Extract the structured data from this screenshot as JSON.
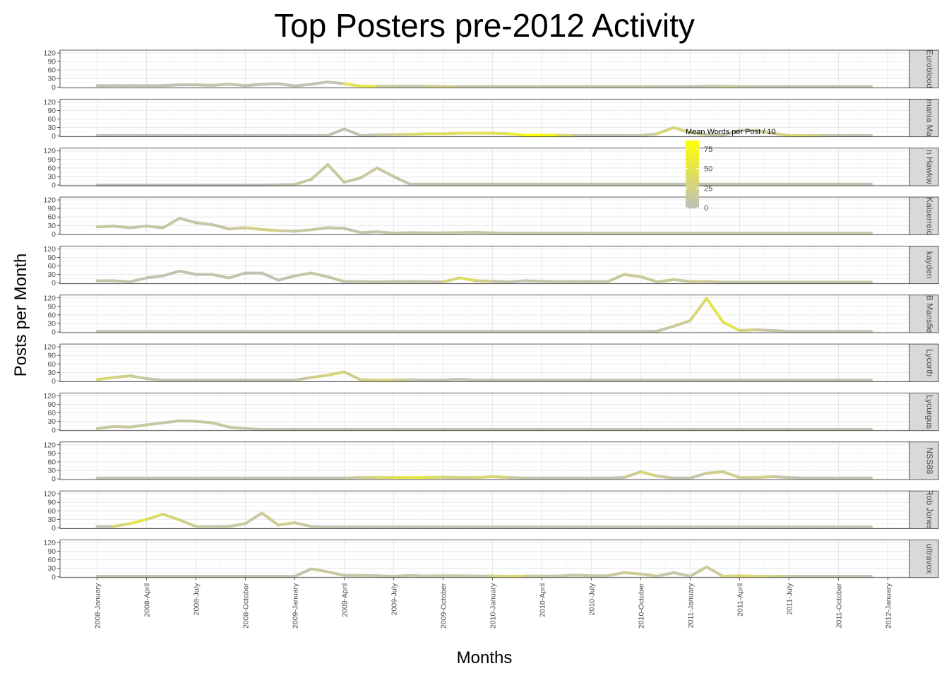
{
  "chart_data": {
    "type": "line",
    "title": "Top Posters pre-2012 Activity",
    "xlabel": "Months",
    "ylabel": "Posts per Month",
    "y_ticks": [
      0,
      30,
      60,
      90,
      120
    ],
    "ylim": [
      0,
      120
    ],
    "x_tick_labels": [
      "2008-January",
      "2008-April",
      "2008-July",
      "2008-October",
      "2009-January",
      "2009-April",
      "2009-July",
      "2009-October",
      "2010-January",
      "2010-April",
      "2010-July",
      "2010-October",
      "2011-January",
      "2011-April",
      "2011-July",
      "2011-October",
      "2012-January"
    ],
    "x_range_months": [
      2007.71,
      2012.25
    ],
    "grid": true,
    "legend": {
      "title": "Mean Words per Post / 10",
      "placement": "inside, right of center",
      "ticks": [
        0,
        25,
        50,
        75
      ],
      "color_low": "#bebebe",
      "color_high": "#ffff00",
      "max": 85
    },
    "series": [
      {
        "name": "Euroblood",
        "values": [
          5,
          5,
          5,
          5,
          5,
          8,
          8,
          6,
          10,
          5,
          10,
          12,
          4,
          10,
          18,
          12,
          3,
          3,
          3,
          3,
          3,
          2,
          2,
          2,
          2,
          2,
          2,
          2,
          2,
          2,
          2,
          2,
          2,
          2,
          2,
          2,
          2,
          3,
          3,
          2,
          2,
          2,
          2,
          2,
          2,
          2,
          2,
          2
        ],
        "words": [
          5,
          5,
          5,
          5,
          5,
          5,
          5,
          10,
          10,
          5,
          5,
          5,
          5,
          5,
          5,
          10,
          85,
          20,
          10,
          10,
          10,
          30,
          10,
          10,
          10,
          10,
          10,
          10,
          10,
          10,
          10,
          10,
          10,
          10,
          10,
          5,
          5,
          5,
          20,
          10,
          5,
          5,
          5,
          5,
          5,
          5,
          5,
          5
        ]
      },
      {
        "name": "mania Ma",
        "values": [
          2,
          2,
          2,
          2,
          2,
          2,
          2,
          2,
          2,
          2,
          2,
          2,
          2,
          2,
          2,
          25,
          2,
          4,
          5,
          6,
          8,
          8,
          10,
          10,
          10,
          8,
          3,
          3,
          3,
          2,
          2,
          2,
          2,
          2,
          8,
          30,
          12,
          5,
          3,
          20,
          20,
          10,
          2,
          2,
          2,
          2,
          2,
          2
        ],
        "words": [
          2,
          2,
          2,
          2,
          2,
          2,
          2,
          2,
          2,
          2,
          2,
          2,
          2,
          2,
          2,
          5,
          5,
          10,
          20,
          35,
          40,
          45,
          40,
          45,
          45,
          45,
          80,
          85,
          60,
          5,
          5,
          5,
          5,
          5,
          20,
          40,
          20,
          10,
          10,
          5,
          10,
          20,
          30,
          40,
          10,
          5,
          5,
          5
        ],
        "label_overlap": false
      },
      {
        "name": "n Hawkw",
        "values": [
          0,
          0,
          0,
          0,
          0,
          0,
          0,
          0,
          0,
          0,
          0,
          1,
          2,
          20,
          72,
          10,
          25,
          60,
          30,
          3,
          3,
          3,
          3,
          3,
          3,
          3,
          3,
          3,
          3,
          3,
          3,
          3,
          3,
          3,
          3,
          3,
          3,
          3,
          3,
          3,
          3,
          3,
          3,
          3,
          3,
          3,
          3,
          3
        ],
        "words": [
          2,
          2,
          2,
          2,
          2,
          2,
          2,
          2,
          2,
          2,
          2,
          2,
          10,
          15,
          15,
          10,
          15,
          15,
          10,
          5,
          5,
          5,
          5,
          5,
          5,
          5,
          5,
          5,
          5,
          5,
          5,
          5,
          5,
          5,
          5,
          5,
          5,
          5,
          5,
          5,
          5,
          5,
          5,
          5,
          5,
          5,
          5,
          5
        ]
      },
      {
        "name": "Kaiserreic",
        "values": [
          25,
          28,
          22,
          28,
          22,
          55,
          40,
          33,
          18,
          22,
          16,
          12,
          10,
          15,
          22,
          20,
          5,
          8,
          3,
          5,
          4,
          4,
          5,
          6,
          4,
          3,
          3,
          3,
          3,
          3,
          3,
          3,
          3,
          3,
          3,
          3,
          3,
          3,
          3,
          3,
          3,
          3,
          3,
          3,
          3,
          3,
          3,
          3
        ],
        "words": [
          12,
          12,
          10,
          12,
          10,
          10,
          10,
          10,
          12,
          20,
          30,
          20,
          12,
          12,
          12,
          10,
          5,
          10,
          10,
          10,
          10,
          10,
          15,
          10,
          10,
          10,
          10,
          10,
          10,
          10,
          10,
          10,
          10,
          10,
          10,
          10,
          10,
          10,
          10,
          10,
          10,
          10,
          10,
          10,
          10,
          10,
          10,
          10
        ]
      },
      {
        "name": "kayden",
        "values": [
          8,
          8,
          4,
          18,
          25,
          42,
          30,
          30,
          18,
          35,
          35,
          10,
          25,
          35,
          22,
          5,
          5,
          4,
          5,
          5,
          5,
          4,
          18,
          8,
          6,
          4,
          8,
          6,
          5,
          5,
          5,
          5,
          30,
          22,
          4,
          12,
          5,
          5,
          3,
          3,
          3,
          3,
          3,
          3,
          3,
          3,
          3,
          3
        ],
        "words": [
          8,
          8,
          8,
          5,
          8,
          5,
          5,
          5,
          10,
          5,
          5,
          5,
          10,
          12,
          12,
          8,
          8,
          8,
          8,
          8,
          8,
          8,
          50,
          35,
          10,
          5,
          8,
          8,
          8,
          8,
          8,
          8,
          20,
          12,
          20,
          10,
          20,
          20,
          10,
          10,
          10,
          10,
          10,
          10,
          10,
          10,
          10,
          10
        ]
      },
      {
        "name": "B Mansfie",
        "values": [
          2,
          2,
          2,
          2,
          2,
          2,
          2,
          2,
          2,
          2,
          2,
          2,
          2,
          2,
          2,
          2,
          2,
          2,
          2,
          2,
          2,
          2,
          2,
          2,
          2,
          2,
          2,
          2,
          2,
          2,
          2,
          2,
          2,
          2,
          3,
          20,
          40,
          118,
          35,
          5,
          8,
          5,
          2,
          2,
          2,
          2,
          2,
          2
        ],
        "words": [
          5,
          5,
          5,
          5,
          5,
          5,
          5,
          5,
          5,
          5,
          5,
          5,
          5,
          5,
          5,
          5,
          5,
          5,
          5,
          5,
          5,
          5,
          5,
          5,
          5,
          5,
          5,
          5,
          5,
          5,
          5,
          5,
          5,
          5,
          5,
          15,
          20,
          40,
          60,
          40,
          15,
          10,
          5,
          5,
          5,
          5,
          5,
          5
        ]
      },
      {
        "name": "Lycorth",
        "values": [
          5,
          12,
          18,
          8,
          3,
          3,
          3,
          3,
          3,
          3,
          3,
          3,
          3,
          12,
          20,
          32,
          4,
          3,
          3,
          4,
          3,
          3,
          6,
          3,
          3,
          3,
          3,
          3,
          3,
          3,
          3,
          3,
          3,
          3,
          3,
          3,
          3,
          3,
          3,
          3,
          3,
          3,
          3,
          3,
          3,
          3,
          3,
          3
        ],
        "words": [
          40,
          30,
          20,
          10,
          5,
          5,
          5,
          5,
          5,
          5,
          5,
          5,
          5,
          20,
          30,
          30,
          15,
          30,
          25,
          10,
          5,
          5,
          5,
          5,
          5,
          5,
          5,
          5,
          5,
          5,
          5,
          5,
          5,
          5,
          5,
          5,
          5,
          5,
          5,
          5,
          5,
          5,
          5,
          5,
          5,
          5,
          5,
          5
        ]
      },
      {
        "name": "Lycurgus",
        "values": [
          5,
          12,
          10,
          18,
          25,
          32,
          30,
          25,
          10,
          5,
          2,
          2,
          2,
          2,
          2,
          2,
          2,
          2,
          2,
          2,
          2,
          2,
          2,
          2,
          2,
          2,
          2,
          2,
          2,
          2,
          2,
          2,
          2,
          2,
          2,
          2,
          2,
          2,
          2,
          2,
          2,
          2,
          2,
          2,
          2,
          2,
          2,
          2
        ],
        "words": [
          12,
          15,
          15,
          12,
          12,
          12,
          12,
          12,
          12,
          12,
          5,
          5,
          5,
          5,
          5,
          5,
          5,
          5,
          5,
          5,
          5,
          5,
          5,
          5,
          5,
          5,
          5,
          5,
          5,
          5,
          5,
          5,
          5,
          5,
          5,
          5,
          5,
          5,
          5,
          5,
          5,
          5,
          5,
          5,
          5,
          5,
          5,
          5
        ]
      },
      {
        "name": "NSS88",
        "values": [
          3,
          3,
          3,
          3,
          3,
          3,
          3,
          3,
          3,
          3,
          3,
          3,
          3,
          3,
          3,
          3,
          5,
          5,
          5,
          5,
          5,
          6,
          5,
          5,
          8,
          5,
          3,
          3,
          3,
          3,
          3,
          3,
          5,
          25,
          10,
          3,
          3,
          20,
          25,
          5,
          5,
          8,
          5,
          3,
          3,
          3,
          3,
          3
        ],
        "words": [
          5,
          5,
          5,
          5,
          5,
          5,
          5,
          5,
          5,
          5,
          5,
          5,
          5,
          5,
          5,
          5,
          20,
          30,
          45,
          55,
          50,
          30,
          20,
          30,
          40,
          20,
          5,
          5,
          5,
          5,
          5,
          5,
          5,
          35,
          25,
          5,
          5,
          15,
          30,
          10,
          30,
          20,
          5,
          5,
          5,
          5,
          5,
          5
        ]
      },
      {
        "name": "Rob Jones",
        "values": [
          5,
          5,
          15,
          30,
          48,
          28,
          5,
          5,
          5,
          15,
          52,
          10,
          18,
          5,
          3,
          3,
          3,
          3,
          3,
          3,
          3,
          3,
          3,
          3,
          3,
          3,
          3,
          3,
          3,
          3,
          3,
          3,
          3,
          3,
          3,
          3,
          3,
          3,
          3,
          3,
          3,
          3,
          3,
          3,
          3,
          3,
          3,
          3
        ],
        "words": [
          5,
          5,
          60,
          45,
          30,
          30,
          15,
          10,
          10,
          15,
          10,
          30,
          15,
          10,
          5,
          5,
          5,
          5,
          5,
          5,
          5,
          5,
          5,
          5,
          5,
          5,
          5,
          5,
          5,
          5,
          5,
          5,
          5,
          5,
          5,
          5,
          5,
          5,
          5,
          5,
          5,
          5,
          5,
          5,
          5,
          5,
          5,
          5
        ]
      },
      {
        "name": "ultravox",
        "values": [
          2,
          2,
          2,
          2,
          2,
          2,
          2,
          2,
          2,
          2,
          2,
          2,
          2,
          28,
          18,
          5,
          5,
          4,
          2,
          5,
          3,
          4,
          4,
          3,
          3,
          2,
          3,
          3,
          3,
          6,
          4,
          4,
          15,
          10,
          2,
          15,
          2,
          35,
          2,
          4,
          2,
          2,
          2,
          2,
          2,
          2,
          2,
          2
        ],
        "words": [
          5,
          5,
          5,
          5,
          5,
          5,
          5,
          5,
          5,
          5,
          5,
          5,
          5,
          10,
          20,
          10,
          10,
          10,
          5,
          10,
          10,
          10,
          10,
          10,
          10,
          50,
          20,
          10,
          10,
          10,
          10,
          10,
          20,
          20,
          10,
          10,
          10,
          15,
          20,
          40,
          30,
          30,
          10,
          5,
          5,
          5,
          5,
          5
        ]
      }
    ]
  }
}
